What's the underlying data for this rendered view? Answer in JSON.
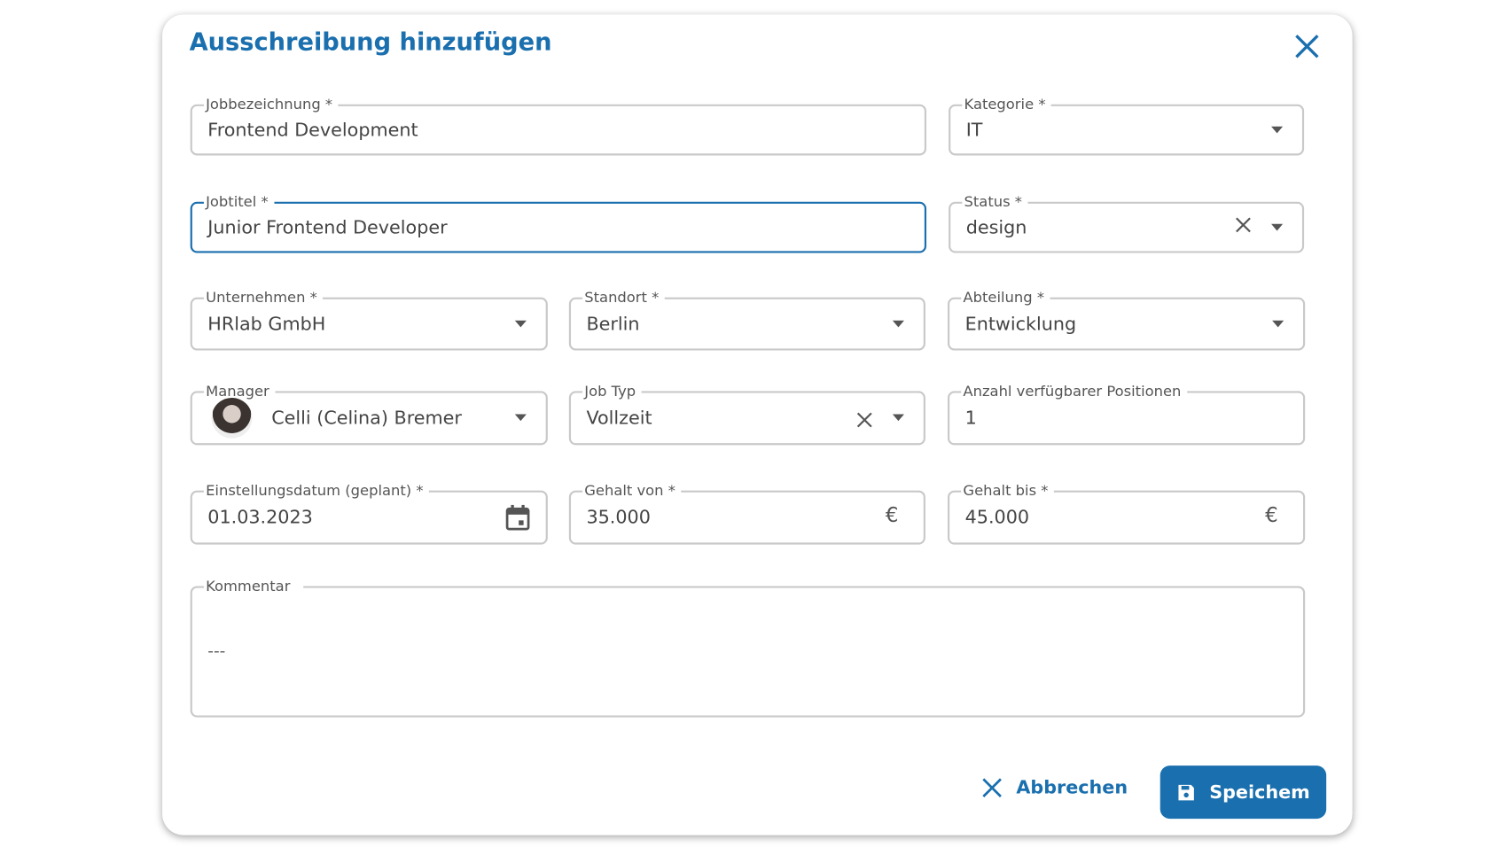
{
  "dialog": {
    "title": "Ausschreibung hinzufügen",
    "close_icon": "close-icon"
  },
  "colors": {
    "accent": "#1a6fae",
    "border": "#c9c9c9"
  },
  "fields": {
    "jobbezeichnung": {
      "label": "Jobbezeichnung *",
      "value": "Frontend Development"
    },
    "kategorie": {
      "label": "Kategorie *",
      "value": "IT"
    },
    "jobtitel": {
      "label": "Jobtitel *",
      "value": "Junior Frontend Developer"
    },
    "status": {
      "label": "Status *",
      "value": "design"
    },
    "unternehmen": {
      "label": "Unternehmen *",
      "value": "HRlab GmbH"
    },
    "standort": {
      "label": "Standort *",
      "value": "Berlin"
    },
    "abteilung": {
      "label": "Abteilung *",
      "value": "Entwicklung"
    },
    "manager": {
      "label": "Manager",
      "value": "Celli (Celina) Bremer"
    },
    "job_typ": {
      "label": "Job Typ",
      "value": "Vollzeit"
    },
    "positionen": {
      "label": "Anzahl verfügbarer Positionen",
      "value": "1"
    },
    "einstellungsdatum": {
      "label": "Einstellungsdatum (geplant) *",
      "value": "01.03.2023"
    },
    "gehalt_von": {
      "label": "Gehalt von *",
      "value": "35.000",
      "unit": "€"
    },
    "gehalt_bis": {
      "label": "Gehalt bis *",
      "value": "45.000",
      "unit": "€"
    },
    "kommentar": {
      "label": "Kommentar",
      "value": "---"
    }
  },
  "actions": {
    "cancel": "Abbrechen",
    "save": "Speichem"
  }
}
